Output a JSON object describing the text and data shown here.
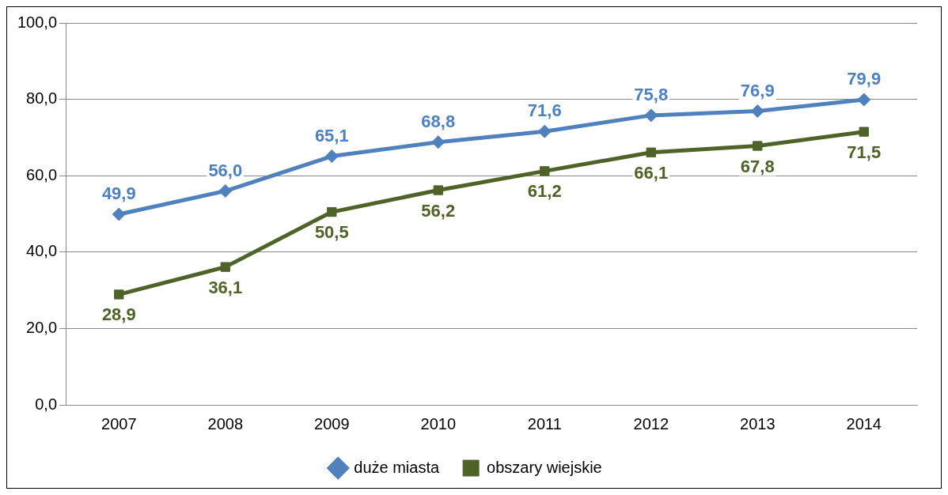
{
  "chart_data": {
    "type": "line",
    "categories": [
      "2007",
      "2008",
      "2009",
      "2010",
      "2011",
      "2012",
      "2013",
      "2014"
    ],
    "series": [
      {
        "name": "duże miasta",
        "color": "#4f81bd",
        "marker": "diamond",
        "values": [
          49.9,
          56.0,
          65.1,
          68.8,
          71.6,
          75.8,
          76.9,
          79.9
        ],
        "value_labels": [
          "49,9",
          "56,0",
          "65,1",
          "68,8",
          "71,6",
          "75,8",
          "76,9",
          "79,9"
        ]
      },
      {
        "name": "obszary wiejskie",
        "color": "#4f6228",
        "marker": "square",
        "values": [
          28.9,
          36.1,
          50.5,
          56.2,
          61.2,
          66.1,
          67.8,
          71.5
        ],
        "value_labels": [
          "28,9",
          "36,1",
          "50,5",
          "56,2",
          "61,2",
          "66,1",
          "67,8",
          "71,5"
        ]
      }
    ],
    "ylim": [
      0,
      100
    ],
    "yticks": [
      {
        "value": 0,
        "label": "0,0"
      },
      {
        "value": 20,
        "label": "20,0"
      },
      {
        "value": 40,
        "label": "40,0"
      },
      {
        "value": 60,
        "label": "60,0"
      },
      {
        "value": 80,
        "label": "80,0"
      },
      {
        "value": 100,
        "label": "100,0"
      }
    ],
    "grid": "y",
    "legend": "bottom",
    "line_style": "solid"
  }
}
